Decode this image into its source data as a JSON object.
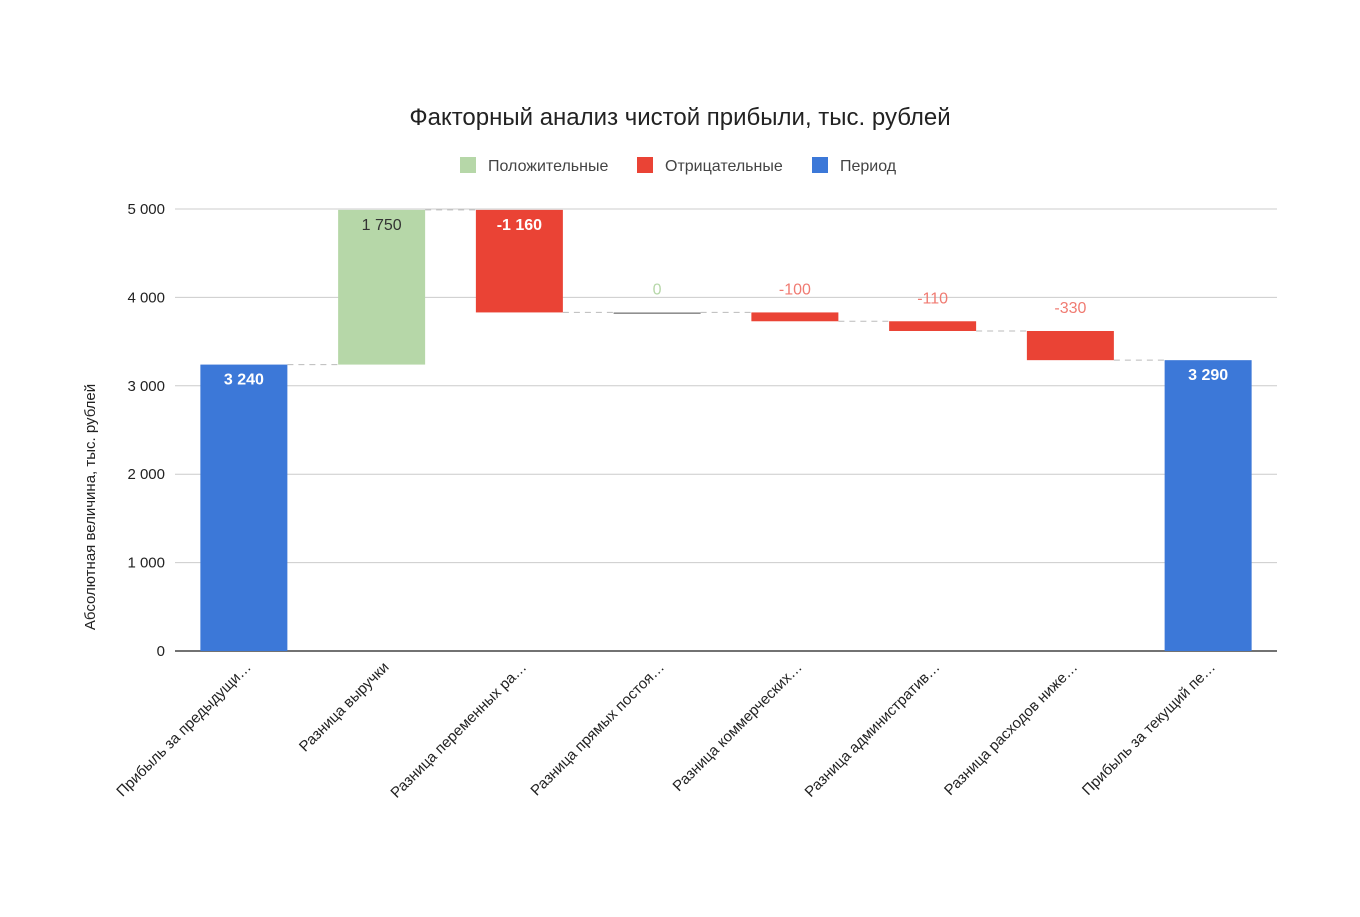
{
  "chart_data": {
    "type": "waterfall",
    "title": "Факторный анализ чистой прибыли, тыс. рублей",
    "xlabel": "",
    "ylabel": "Абсолютная величина, тыс. рублей",
    "ylim": [
      0,
      5000
    ],
    "yticks": [
      0,
      1000,
      2000,
      3000,
      4000,
      5000
    ],
    "ytick_labels": [
      "0",
      "1 000",
      "2 000",
      "3 000",
      "4 000",
      "5 000"
    ],
    "grid": true,
    "legend_position": "top",
    "legend": [
      {
        "name": "Положительные",
        "color": "#b6d7a8"
      },
      {
        "name": "Отрицательные",
        "color": "#ea4335"
      },
      {
        "name": "Период",
        "color": "#3c78d8"
      }
    ],
    "categories": [
      "Прибыль за предыдущи…",
      "Разница выручки",
      "Разница переменных ра…",
      "Разница прямых постоя…",
      "Разница коммерческих…",
      "Разница административ…",
      "Разница расходов ниже…",
      "Прибыль за текущий пе…"
    ],
    "values": [
      3240,
      1750,
      -1160,
      0,
      -100,
      -110,
      -330,
      3290
    ],
    "kinds": [
      "period",
      "delta",
      "delta",
      "delta",
      "delta",
      "delta",
      "delta",
      "period"
    ],
    "data_labels": [
      "3 240",
      "1 750",
      "-1 160",
      "0",
      "-100",
      "-110",
      "-330",
      "3 290"
    ]
  }
}
